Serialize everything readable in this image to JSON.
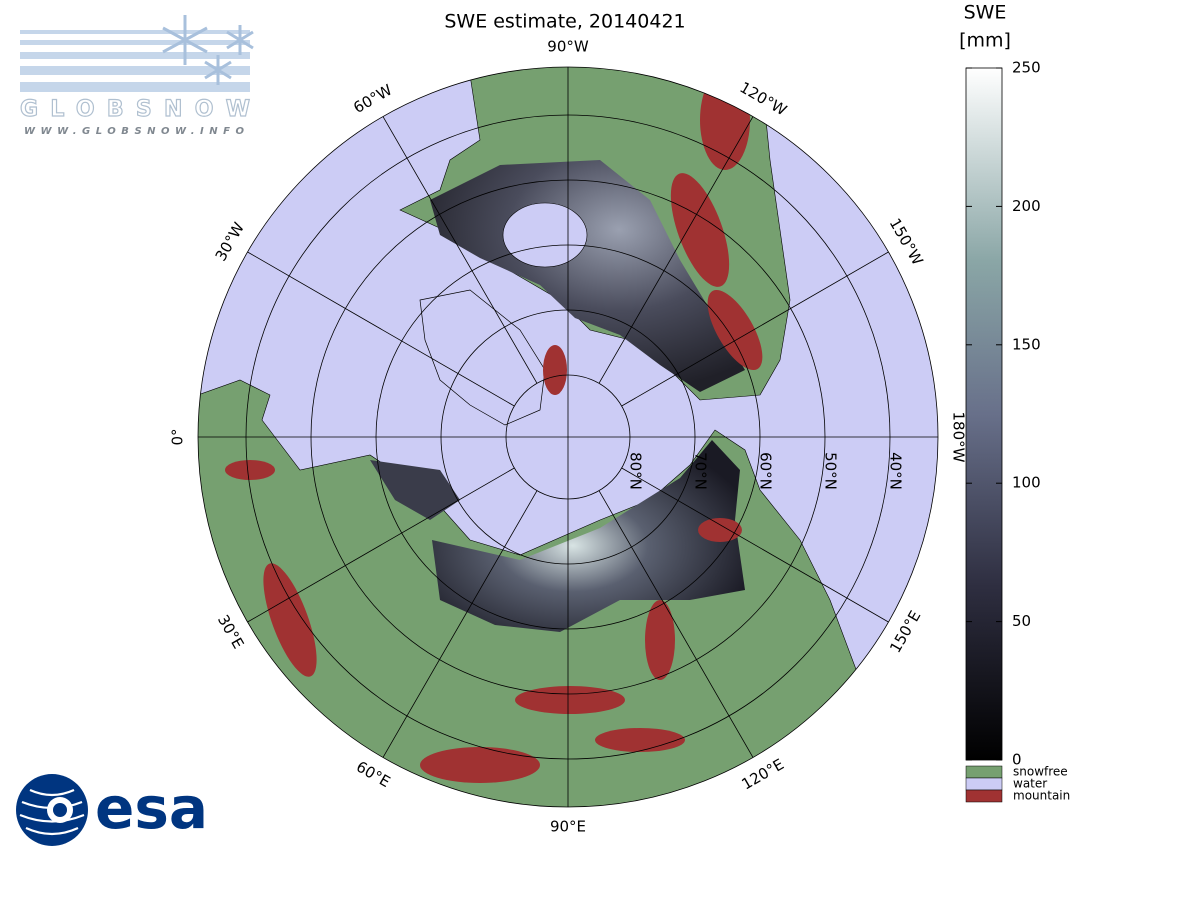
{
  "title": "SWE estimate, 20140421",
  "colorbar": {
    "label_lines": [
      "SWE",
      "[mm]"
    ],
    "range": [
      0,
      250
    ],
    "ticks": [
      0,
      50,
      100,
      150,
      200,
      250
    ]
  },
  "legend": [
    {
      "label": "snowfree",
      "color": "#76a070"
    },
    {
      "label": "water",
      "color": "#ccccf5"
    },
    {
      "label": "mountain",
      "color": "#a03232"
    }
  ],
  "meridian_labels": [
    "90°W",
    "120°W",
    "150°W",
    "180°W",
    "150°E",
    "120°E",
    "90°E",
    "60°E",
    "30°E",
    "0°",
    "30°W",
    "60°W"
  ],
  "latitude_labels": [
    "80°N",
    "70°N",
    "60°N",
    "50°N",
    "40°N"
  ],
  "logos": {
    "globsnow": "GLOBSNOW",
    "globsnow_url": "WWW.GLOBSNOW.INFO",
    "esa": "esa"
  }
}
